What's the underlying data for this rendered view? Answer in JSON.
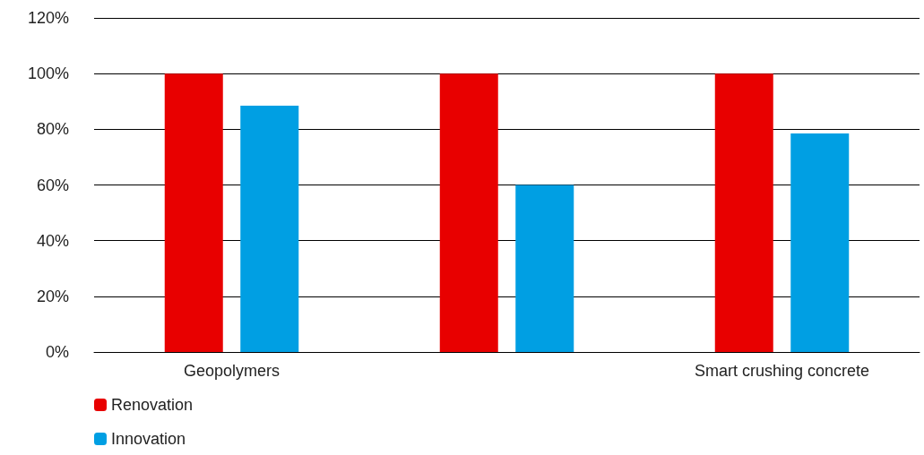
{
  "chart_data": {
    "type": "bar",
    "categories": [
      "Geopolymers",
      null,
      "Smart crushing concrete"
    ],
    "series": [
      {
        "name": "Renovation",
        "color": "#e80000",
        "values": [
          100,
          100,
          100
        ]
      },
      {
        "name": "Innovation",
        "color": "#009fe3",
        "values": [
          88.5,
          60,
          78.5
        ]
      }
    ],
    "ylim": [
      0,
      120
    ],
    "yticks": [
      {
        "value": 0,
        "label": "0%"
      },
      {
        "value": 20,
        "label": "20%"
      },
      {
        "value": 40,
        "label": "40%"
      },
      {
        "value": 60,
        "label": "60%"
      },
      {
        "value": 80,
        "label": "80%"
      },
      {
        "value": 100,
        "label": "100%"
      },
      {
        "value": 120,
        "label": "120%"
      }
    ],
    "grid": "y",
    "legend": "bottom left"
  }
}
